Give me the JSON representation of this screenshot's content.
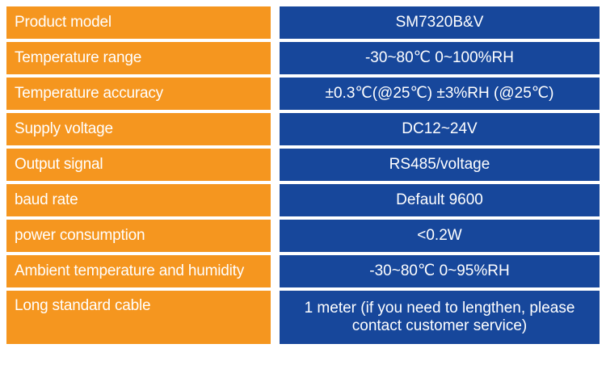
{
  "spec_table": {
    "rows": [
      {
        "label": "Product model",
        "value": "SM7320B&V"
      },
      {
        "label": "Temperature range",
        "value": "-30~80℃   0~100%RH"
      },
      {
        "label": "Temperature accuracy",
        "value": "±0.3℃(@25℃)   ±3%RH (@25℃)"
      },
      {
        "label": "Supply voltage",
        "value": "DC12~24V"
      },
      {
        "label": "Output signal",
        "value": "RS485/voltage"
      },
      {
        "label": "baud rate",
        "value": "Default 9600"
      },
      {
        "label": "power consumption",
        "value": "<0.2W"
      },
      {
        "label": "Ambient temperature and humidity",
        "value": "-30~80℃  0~95%RH"
      },
      {
        "label": "Long standard cable",
        "value": "1 meter (if you need to lengthen, please contact customer service)"
      }
    ]
  },
  "colors": {
    "label_bg": "#f5961f",
    "value_bg": "#17479b",
    "text": "#ffffff"
  }
}
